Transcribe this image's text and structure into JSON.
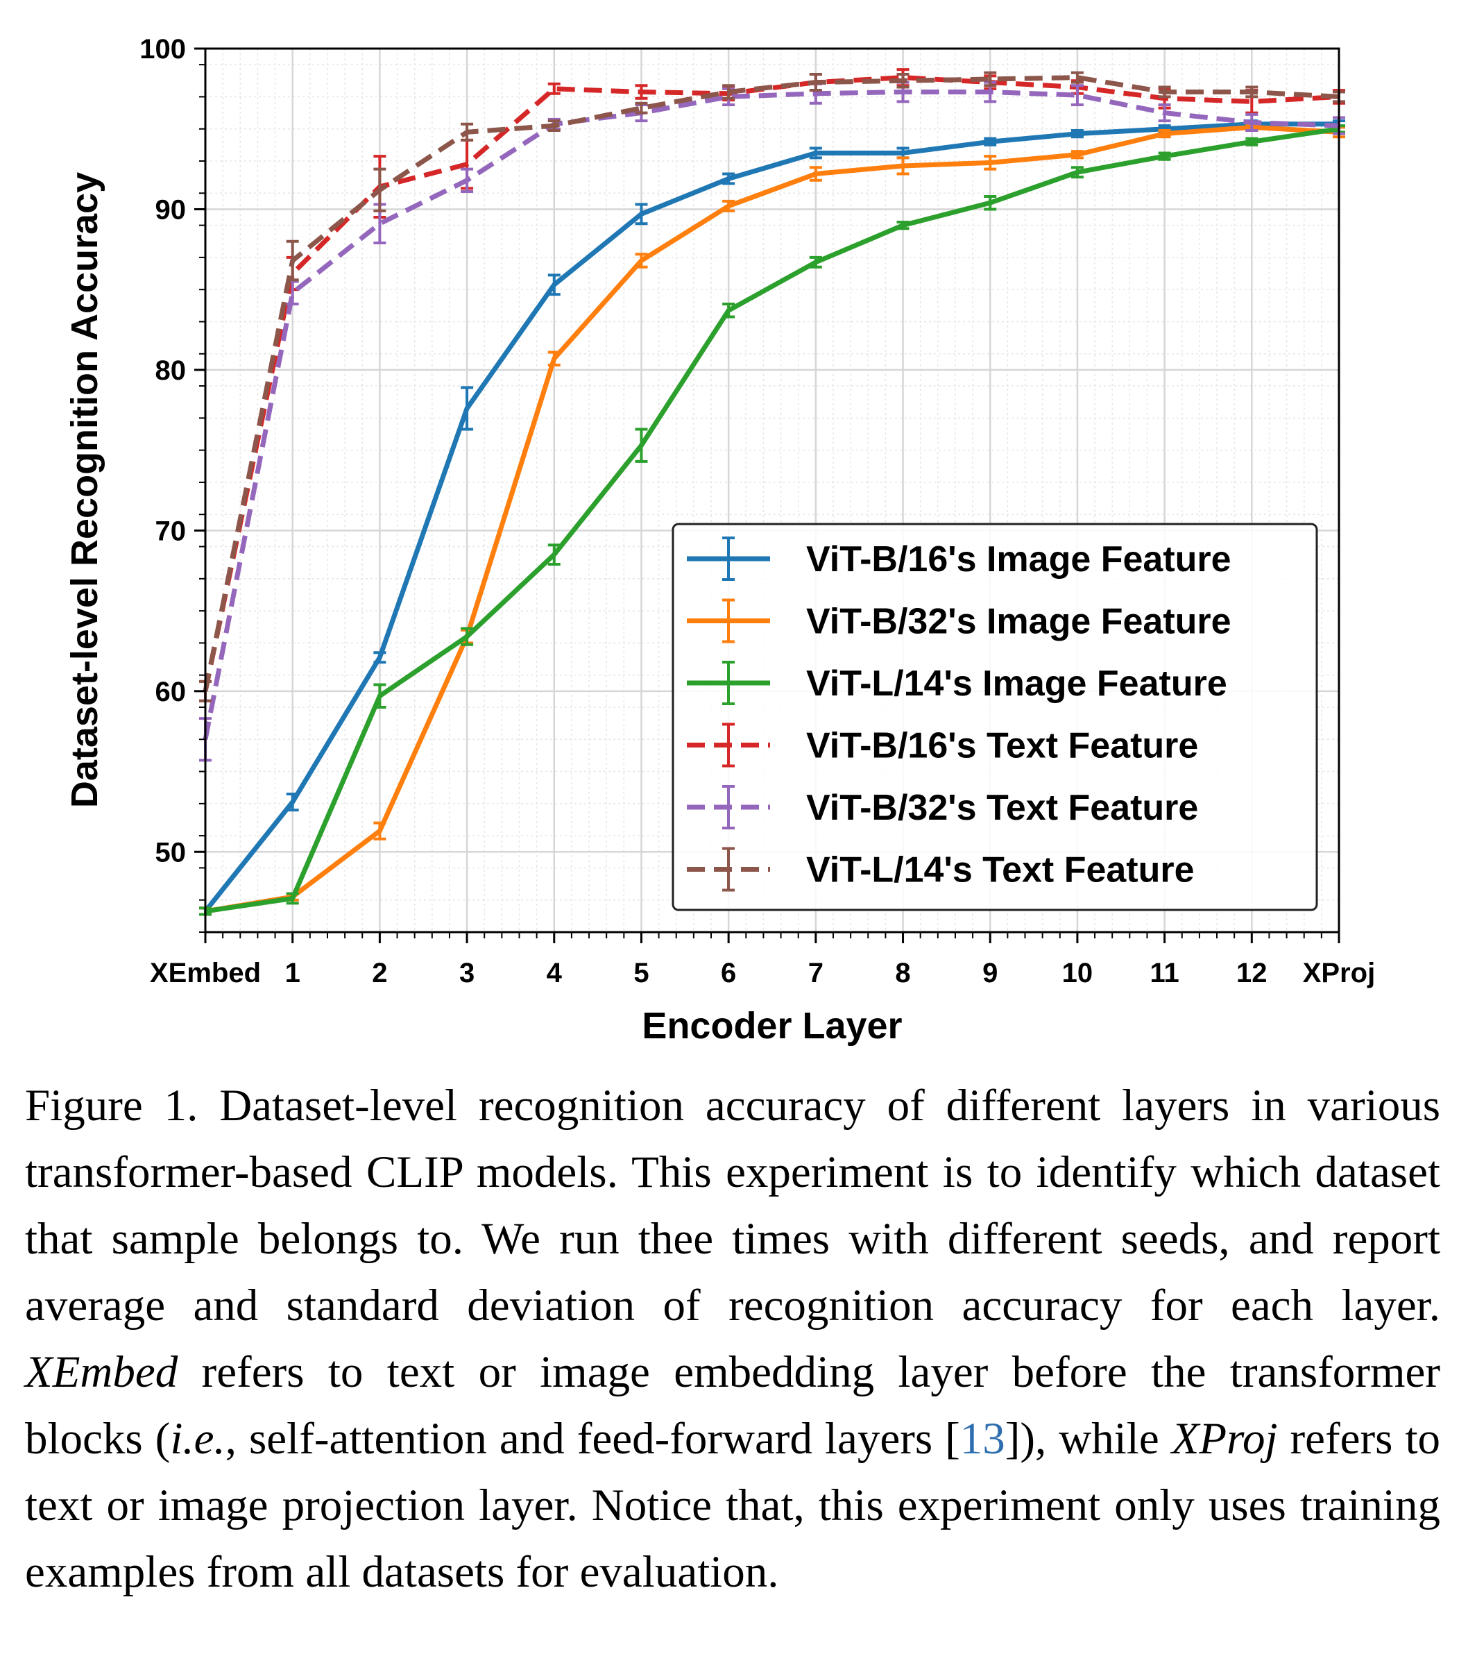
{
  "chart_data": {
    "type": "line",
    "xlabel": "Encoder Layer",
    "ylabel": "Dataset-level Recognition Accuracy",
    "categories": [
      "XEmbed",
      "1",
      "2",
      "3",
      "4",
      "5",
      "6",
      "7",
      "8",
      "9",
      "10",
      "11",
      "12",
      "XProj"
    ],
    "ylim": [
      45,
      100
    ],
    "yticks": [
      50,
      60,
      70,
      80,
      90,
      100
    ],
    "grid": true,
    "legend_position": "lower-right",
    "series": [
      {
        "name": "ViT-B/16's Image Feature",
        "color": "#1f77b4",
        "dashed": false,
        "values": [
          46.3,
          53.1,
          62.1,
          77.6,
          85.3,
          89.7,
          91.9,
          93.5,
          93.5,
          94.2,
          94.7,
          95.0,
          95.3,
          95.3
        ],
        "errors": [
          0.2,
          0.5,
          0.3,
          1.3,
          0.6,
          0.6,
          0.3,
          0.3,
          0.3,
          0.2,
          0.2,
          0.2,
          0.2,
          0.2
        ]
      },
      {
        "name": "ViT-B/32's Image Feature",
        "color": "#ff7f0e",
        "dashed": false,
        "values": [
          46.3,
          47.2,
          51.3,
          63.4,
          80.7,
          86.8,
          90.2,
          92.2,
          92.7,
          92.9,
          93.4,
          94.7,
          95.1,
          94.8
        ],
        "errors": [
          0.2,
          0.2,
          0.5,
          0.4,
          0.4,
          0.4,
          0.3,
          0.4,
          0.5,
          0.4,
          0.2,
          0.2,
          0.2,
          0.3
        ]
      },
      {
        "name": "ViT-L/14's Image Feature",
        "color": "#2ca02c",
        "dashed": false,
        "values": [
          46.3,
          47.1,
          59.7,
          63.4,
          68.5,
          75.3,
          83.7,
          86.7,
          89.0,
          90.4,
          92.3,
          93.3,
          94.2,
          95.0
        ],
        "errors": [
          0.2,
          0.3,
          0.7,
          0.5,
          0.6,
          1.0,
          0.4,
          0.3,
          0.2,
          0.4,
          0.3,
          0.2,
          0.2,
          0.2
        ]
      },
      {
        "name": "ViT-B/16's Text Feature",
        "color": "#d62728",
        "dashed": true,
        "values": [
          60.0,
          86.0,
          91.4,
          92.8,
          97.5,
          97.3,
          97.2,
          97.9,
          98.2,
          97.9,
          97.6,
          96.9,
          96.7,
          97.0
        ],
        "errors": [
          0.6,
          1.0,
          1.9,
          1.5,
          0.3,
          0.4,
          0.4,
          0.5,
          0.5,
          0.4,
          0.4,
          0.6,
          0.7,
          0.4
        ]
      },
      {
        "name": "ViT-B/32's Text Feature",
        "color": "#9467bd",
        "dashed": true,
        "values": [
          57.0,
          84.8,
          89.1,
          91.8,
          95.3,
          96.0,
          97.0,
          97.2,
          97.3,
          97.3,
          97.1,
          96.0,
          95.4,
          95.2
        ],
        "errors": [
          1.3,
          0.7,
          1.2,
          0.7,
          0.3,
          0.5,
          0.5,
          0.6,
          0.6,
          0.6,
          0.6,
          0.5,
          0.5,
          0.5
        ]
      },
      {
        "name": "ViT-L/14's Text Feature",
        "color": "#8c564b",
        "dashed": true,
        "values": [
          60.0,
          86.8,
          91.2,
          94.8,
          95.2,
          96.3,
          97.3,
          97.9,
          98.0,
          98.1,
          98.2,
          97.3,
          97.3,
          97.0
        ],
        "errors": [
          0.6,
          1.2,
          1.3,
          0.5,
          0.3,
          0.3,
          0.4,
          0.5,
          0.4,
          0.4,
          0.3,
          0.3,
          0.3,
          0.3
        ]
      }
    ]
  },
  "caption": {
    "lead": "Figure 1.  Dataset-level recognition accuracy of different layers in various transformer-based CLIP models. This experiment is to identify which dataset that sample belongs to. We run thee times with different seeds, and report average and standard deviation of recognition accuracy for each layer. ",
    "xembed": "XEmbed",
    "part2": " refers to text or image embedding layer before the transformer blocks (",
    "ie": "i.e.",
    "part3": ", self-attention and feed-forward layers [",
    "ref": "13",
    "part4": "]), while ",
    "xproj": "XProj",
    "part5": " refers to text or image projection layer. Notice that, this experiment only uses training examples from all datasets for evaluation."
  }
}
